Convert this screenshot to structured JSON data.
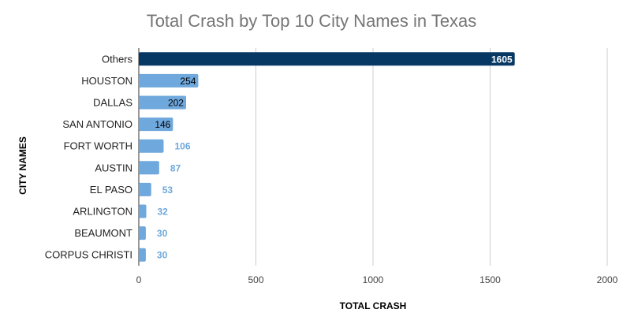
{
  "chart_data": {
    "type": "bar",
    "orientation": "horizontal",
    "title": "Total Crash by Top 10 City Names in Texas",
    "xlabel": "TOTAL CRASH",
    "ylabel": "CITY NAMES",
    "categories": [
      "Others",
      "HOUSTON",
      "DALLAS",
      "SAN ANTONIO",
      "FORT WORTH",
      "AUSTIN",
      "EL PASO",
      "ARLINGTON",
      "BEAUMONT",
      "CORPUS CHRISTI"
    ],
    "values": [
      1605,
      254,
      202,
      146,
      106,
      87,
      53,
      32,
      30,
      30
    ],
    "xlim": [
      0,
      2000
    ],
    "xticks": [
      0,
      500,
      1000,
      1500,
      2000
    ],
    "grid": true,
    "legend": "none",
    "colors": {
      "highlight": "#073763",
      "bar": "#6fa8dc",
      "label_inside_dark": "#ffffff",
      "label_inside_light": "#000000",
      "label_outside": "#6fa8dc",
      "grid": "#cccccc",
      "axis": "#333333"
    }
  }
}
